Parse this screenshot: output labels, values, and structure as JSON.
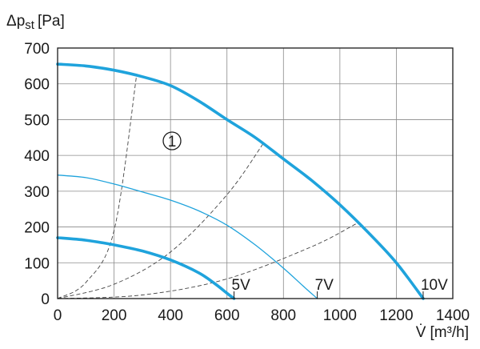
{
  "chart_data": {
    "type": "line",
    "ylabel_main": "Δp",
    "ylabel_sub": "st",
    "ylabel_unit": "[Pa]",
    "xlabel_main": "V̇",
    "xlabel_unit": "[m³/h]",
    "xlim": [
      0,
      1400
    ],
    "ylim": [
      0,
      700
    ],
    "x_ticks": [
      0,
      200,
      400,
      600,
      800,
      1000,
      1200,
      1400
    ],
    "y_ticks": [
      0,
      100,
      200,
      300,
      400,
      500,
      600,
      700
    ],
    "grid": true,
    "annotation": "①",
    "series": [
      {
        "name": "10V",
        "color": "#1fa3dc",
        "style": "thick",
        "points": [
          [
            0,
            655
          ],
          [
            100,
            650
          ],
          [
            200,
            638
          ],
          [
            300,
            620
          ],
          [
            400,
            595
          ],
          [
            500,
            552
          ],
          [
            600,
            500
          ],
          [
            700,
            450
          ],
          [
            800,
            390
          ],
          [
            900,
            330
          ],
          [
            1000,
            262
          ],
          [
            1100,
            185
          ],
          [
            1200,
            100
          ],
          [
            1295,
            0
          ]
        ]
      },
      {
        "name": "7V",
        "color": "#1fa3dc",
        "style": "thin",
        "points": [
          [
            0,
            345
          ],
          [
            100,
            338
          ],
          [
            200,
            320
          ],
          [
            300,
            298
          ],
          [
            400,
            275
          ],
          [
            500,
            245
          ],
          [
            600,
            205
          ],
          [
            700,
            150
          ],
          [
            800,
            85
          ],
          [
            870,
            35
          ],
          [
            920,
            0
          ]
        ]
      },
      {
        "name": "5V",
        "color": "#1fa3dc",
        "style": "thick",
        "points": [
          [
            0,
            170
          ],
          [
            100,
            163
          ],
          [
            200,
            150
          ],
          [
            300,
            133
          ],
          [
            400,
            108
          ],
          [
            500,
            72
          ],
          [
            560,
            40
          ],
          [
            600,
            15
          ],
          [
            625,
            0
          ]
        ]
      }
    ],
    "system_curves": [
      {
        "color": "#444444",
        "points": [
          [
            0,
            0
          ],
          [
            100,
            45
          ],
          [
            200,
            190
          ],
          [
            280,
            625
          ]
        ]
      },
      {
        "color": "#444444",
        "points": [
          [
            0,
            0
          ],
          [
            200,
            40
          ],
          [
            400,
            130
          ],
          [
            600,
            290
          ],
          [
            730,
            435
          ]
        ]
      },
      {
        "color": "#444444",
        "points": [
          [
            0,
            0
          ],
          [
            300,
            10
          ],
          [
            600,
            55
          ],
          [
            900,
            145
          ],
          [
            1060,
            210
          ]
        ]
      }
    ]
  }
}
